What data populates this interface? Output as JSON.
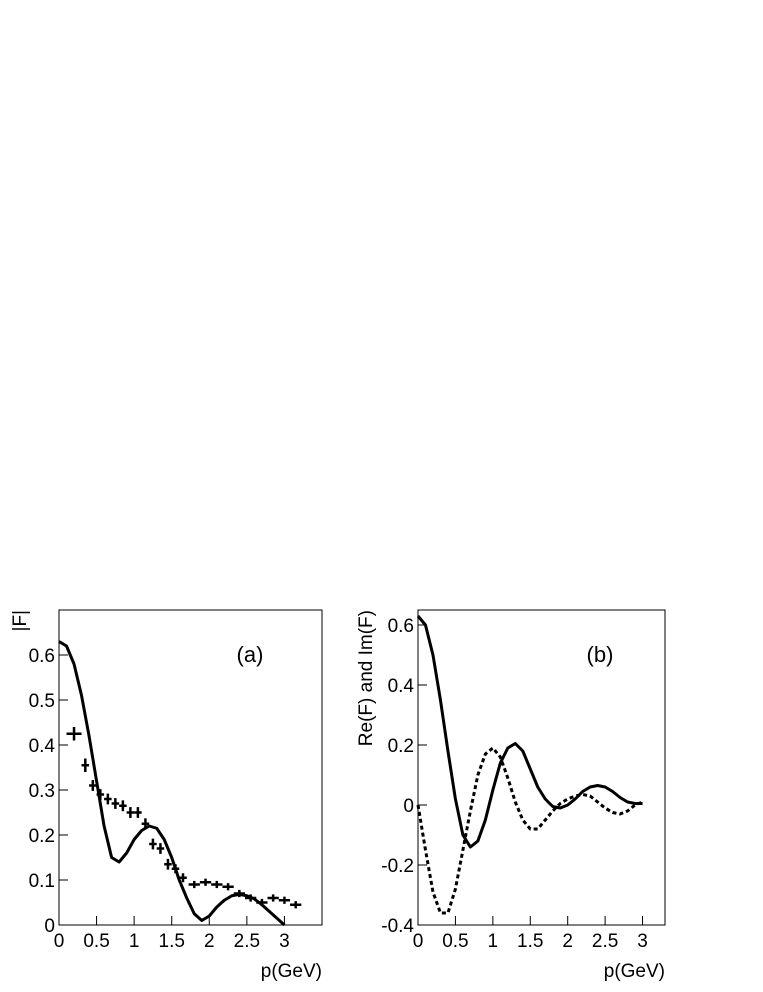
{
  "chart_data": [
    {
      "type": "line",
      "annotation": "(a)",
      "x_label": "p(GeV)",
      "y_label": "|F|",
      "xlim": [
        0,
        3.5
      ],
      "xticks": [
        0,
        0.5,
        1,
        1.5,
        2,
        2.5,
        3
      ],
      "ylim": [
        0,
        0.7
      ],
      "yticks": [
        0,
        0.1,
        0.2,
        0.3,
        0.4,
        0.5,
        0.6
      ],
      "series": [
        {
          "color": "#000000",
          "style": "solid",
          "x": [
            0,
            0.1,
            0.2,
            0.3,
            0.4,
            0.5,
            0.6,
            0.7,
            0.8,
            0.9,
            1.0,
            1.1,
            1.2,
            1.3,
            1.4,
            1.5,
            1.6,
            1.7,
            1.8,
            1.9,
            2.0,
            2.1,
            2.2,
            2.3,
            2.4,
            2.5,
            2.6,
            2.7,
            2.8,
            2.9,
            3.0
          ],
          "values": [
            0.63,
            0.62,
            0.58,
            0.51,
            0.42,
            0.32,
            0.22,
            0.15,
            0.14,
            0.16,
            0.19,
            0.21,
            0.22,
            0.215,
            0.19,
            0.15,
            0.1,
            0.06,
            0.025,
            0.01,
            0.02,
            0.04,
            0.055,
            0.065,
            0.068,
            0.065,
            0.058,
            0.045,
            0.03,
            0.015,
            0.0
          ]
        },
        {
          "color": "#000000",
          "style": "crosses",
          "x": [
            0.2,
            0.35,
            0.45,
            0.55,
            0.65,
            0.75,
            0.85,
            0.95,
            1.05,
            1.15,
            1.25,
            1.35,
            1.45,
            1.55,
            1.65,
            1.8,
            1.95,
            2.1,
            2.25,
            2.4,
            2.55,
            2.7,
            2.85,
            3.0,
            3.15
          ],
          "xerr": [
            0.1,
            0.05,
            0.05,
            0.05,
            0.05,
            0.05,
            0.05,
            0.05,
            0.05,
            0.05,
            0.05,
            0.05,
            0.05,
            0.05,
            0.05,
            0.075,
            0.075,
            0.075,
            0.075,
            0.075,
            0.075,
            0.075,
            0.075,
            0.075,
            0.075
          ],
          "values": [
            0.425,
            0.355,
            0.31,
            0.29,
            0.28,
            0.27,
            0.265,
            0.25,
            0.25,
            0.225,
            0.18,
            0.17,
            0.135,
            0.125,
            0.105,
            0.09,
            0.095,
            0.09,
            0.085,
            0.07,
            0.06,
            0.05,
            0.06,
            0.055,
            0.045
          ],
          "yerr": [
            0.015,
            0.015,
            0.012,
            0.012,
            0.012,
            0.012,
            0.012,
            0.012,
            0.012,
            0.012,
            0.012,
            0.012,
            0.012,
            0.01,
            0.01,
            0.008,
            0.008,
            0.008,
            0.008,
            0.008,
            0.008,
            0.008,
            0.008,
            0.008,
            0.008
          ]
        }
      ]
    },
    {
      "type": "line",
      "annotation": "(b)",
      "x_label": "p(GeV)",
      "y_label": "Re(F) and Im(F)",
      "xlim": [
        0,
        3.3
      ],
      "xticks": [
        0,
        0.5,
        1,
        1.5,
        2,
        2.5,
        3
      ],
      "ylim": [
        -0.4,
        0.65
      ],
      "yticks": [
        -0.4,
        -0.2,
        0,
        0.2,
        0.4,
        0.6
      ],
      "series": [
        {
          "color": "#000000",
          "style": "solid",
          "x": [
            0,
            0.1,
            0.2,
            0.3,
            0.4,
            0.5,
            0.6,
            0.7,
            0.8,
            0.9,
            1.0,
            1.1,
            1.2,
            1.3,
            1.4,
            1.5,
            1.6,
            1.7,
            1.8,
            1.9,
            2.0,
            2.1,
            2.2,
            2.3,
            2.4,
            2.5,
            2.6,
            2.7,
            2.8,
            2.9,
            3.0
          ],
          "values": [
            0.63,
            0.6,
            0.5,
            0.35,
            0.18,
            0.02,
            -0.1,
            -0.14,
            -0.12,
            -0.05,
            0.05,
            0.14,
            0.19,
            0.205,
            0.18,
            0.12,
            0.06,
            0.02,
            -0.005,
            -0.01,
            0.0,
            0.02,
            0.045,
            0.06,
            0.065,
            0.06,
            0.045,
            0.025,
            0.01,
            0.005,
            0.005
          ]
        },
        {
          "color": "#000000",
          "style": "dotted",
          "x": [
            0,
            0.1,
            0.2,
            0.3,
            0.4,
            0.5,
            0.6,
            0.7,
            0.8,
            0.9,
            1.0,
            1.1,
            1.2,
            1.3,
            1.4,
            1.5,
            1.6,
            1.7,
            1.8,
            1.9,
            2.0,
            2.1,
            2.2,
            2.3,
            2.4,
            2.5,
            2.6,
            2.7,
            2.8,
            2.9,
            3.0
          ],
          "values": [
            0,
            -0.15,
            -0.29,
            -0.36,
            -0.36,
            -0.28,
            -0.15,
            -0.02,
            0.1,
            0.17,
            0.19,
            0.16,
            0.09,
            0.01,
            -0.05,
            -0.08,
            -0.08,
            -0.05,
            -0.02,
            0.005,
            0.02,
            0.03,
            0.035,
            0.03,
            0.01,
            -0.01,
            -0.025,
            -0.03,
            -0.02,
            0.0,
            0.01
          ]
        }
      ]
    }
  ]
}
